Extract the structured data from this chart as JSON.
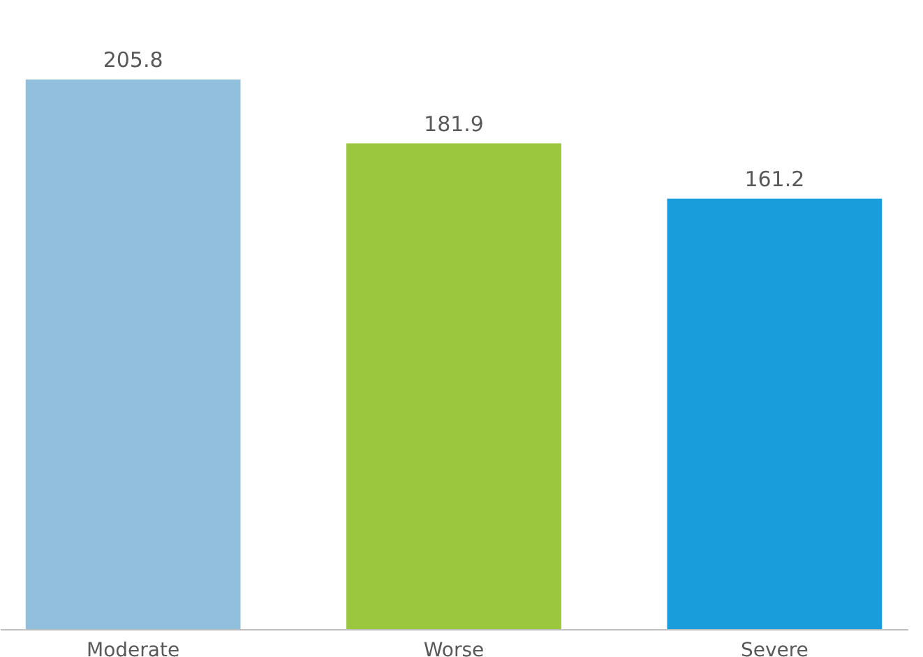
{
  "chart_data": {
    "type": "bar",
    "categories": [
      "Moderate",
      "Worse",
      "Severe"
    ],
    "values": [
      205.8,
      181.9,
      161.2
    ],
    "colors": [
      "#92c0dc",
      "#9ac73e",
      "#1a9ddb"
    ],
    "data_labels": true,
    "grid": false,
    "legend": false,
    "tick_labels": "x"
  }
}
